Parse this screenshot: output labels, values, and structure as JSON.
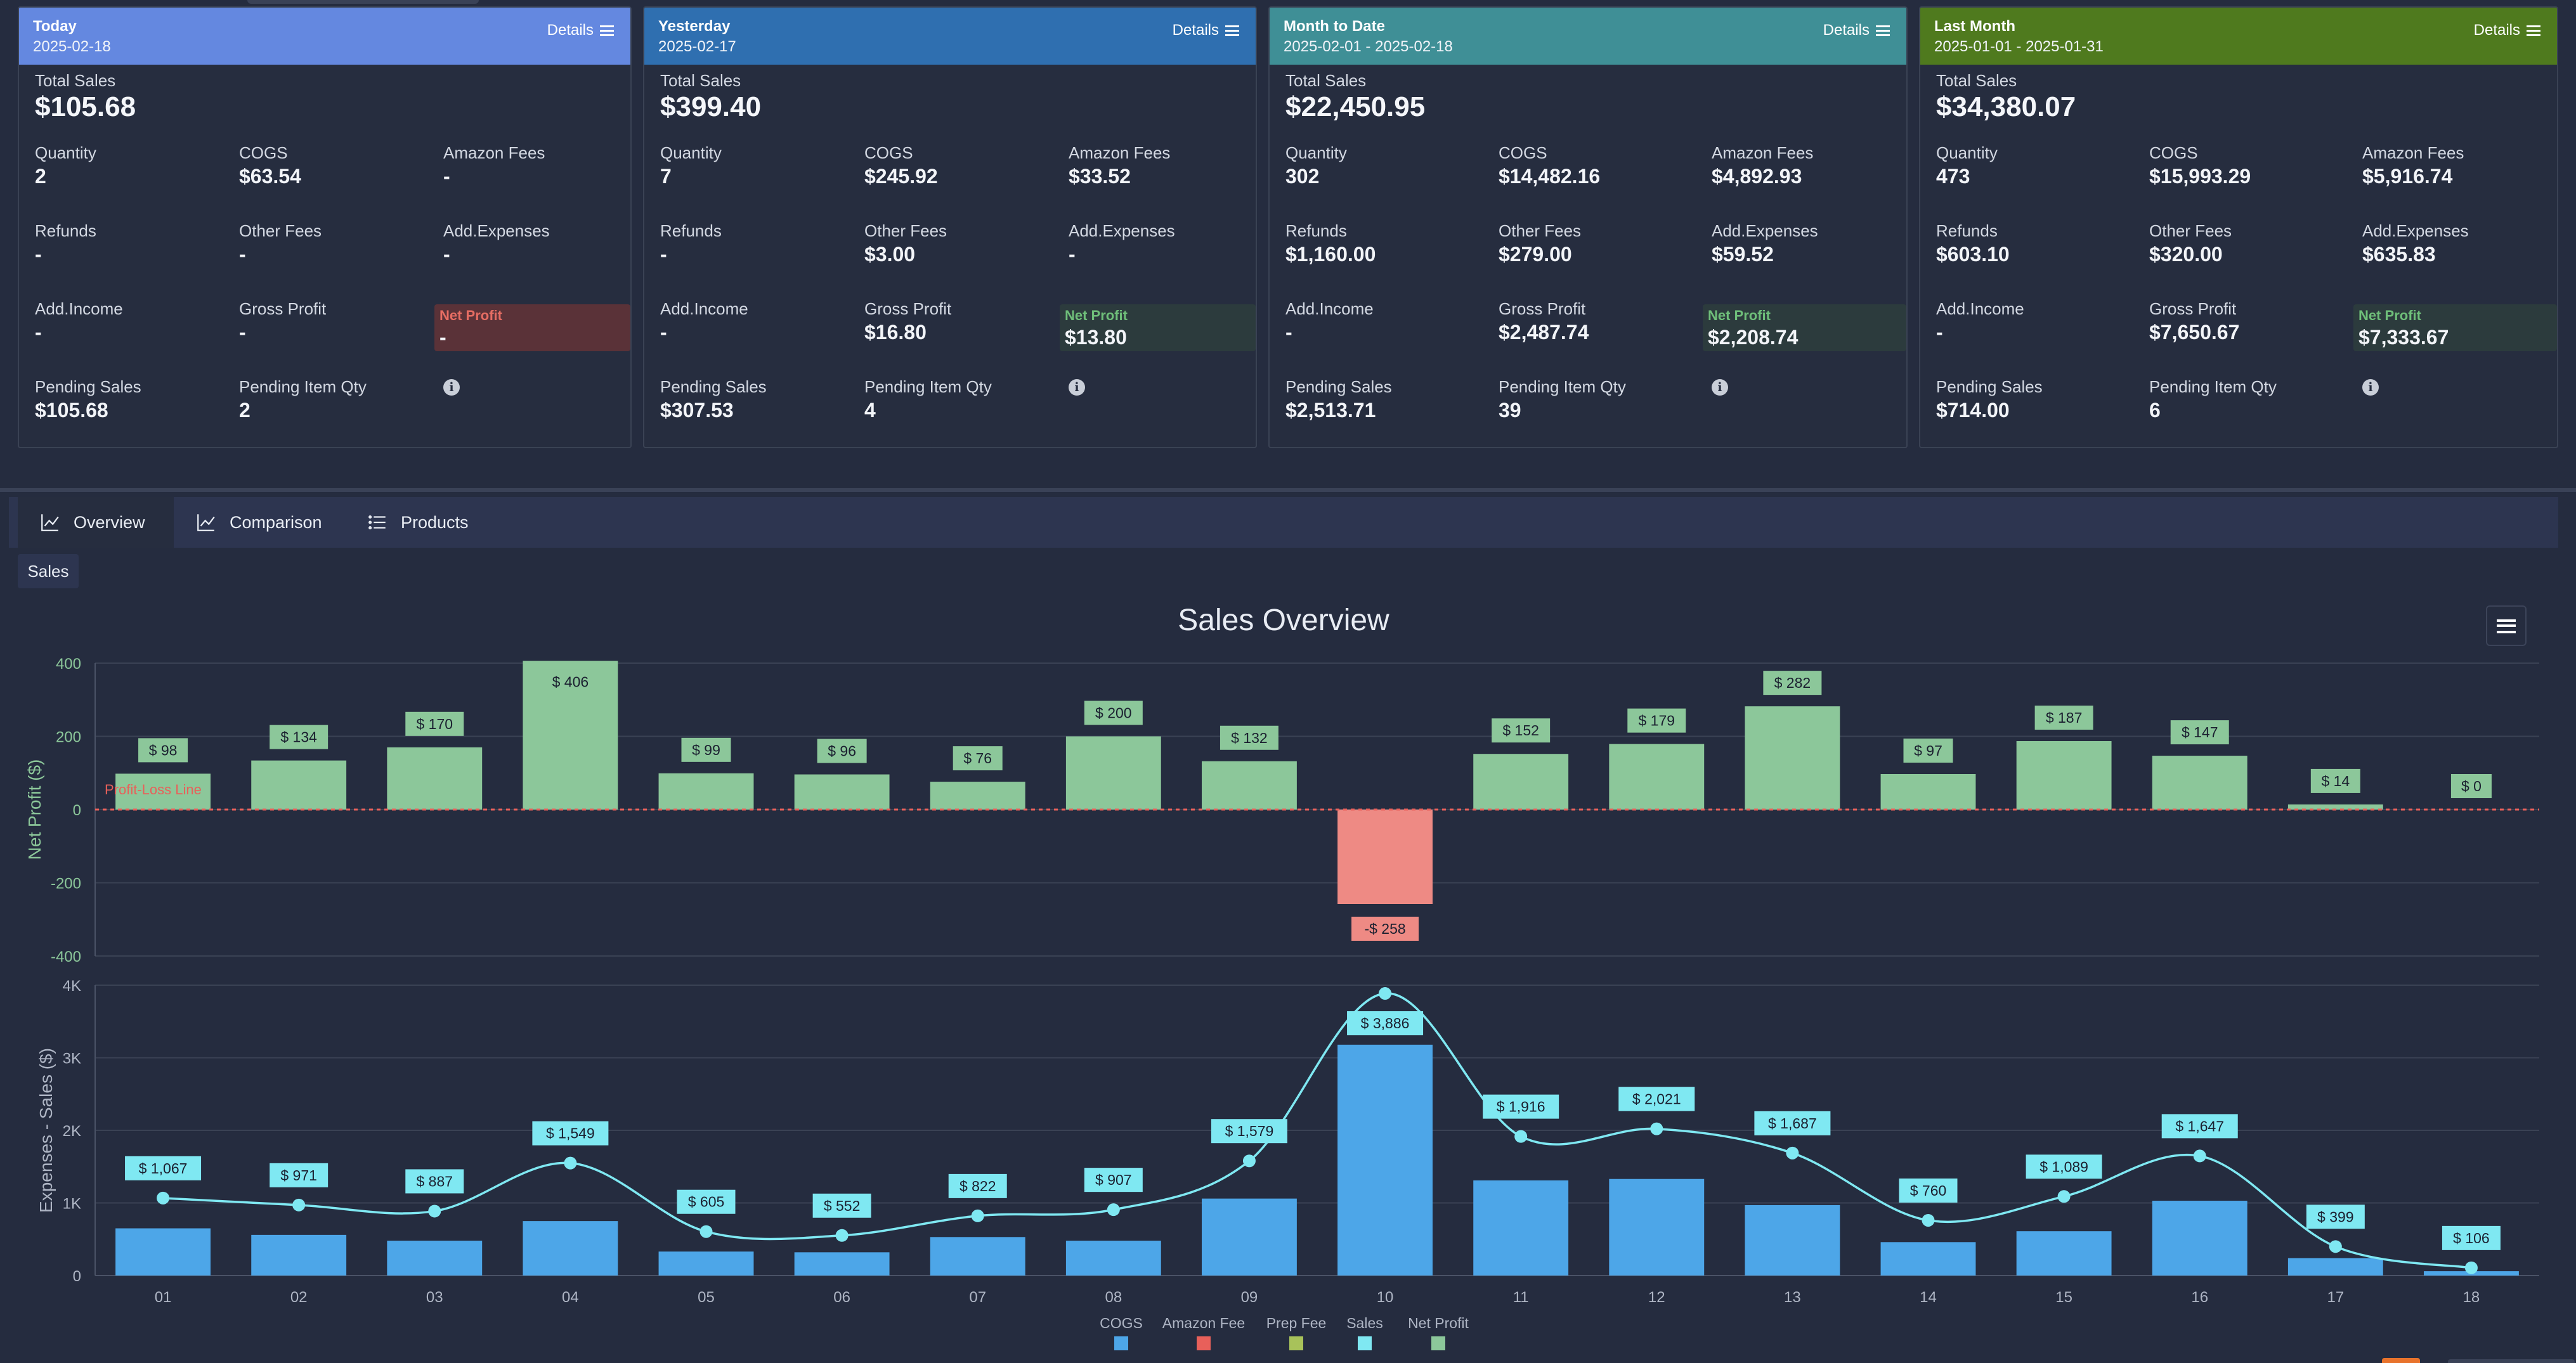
{
  "cards": [
    {
      "id": "today",
      "title": "Today",
      "range": "2025-02-18",
      "details_label": "Details",
      "color": "#6488e0",
      "np_bg": "#5a3238",
      "np_color": "#e66d63",
      "total_label": "Total Sales",
      "total_value": "$105.68",
      "metrics": [
        {
          "label": "Quantity",
          "value": "2"
        },
        {
          "label": "COGS",
          "value": "$63.54"
        },
        {
          "label": "Amazon Fees",
          "value": "-"
        },
        {
          "label": "Refunds",
          "value": "-"
        },
        {
          "label": "Other Fees",
          "value": "-"
        },
        {
          "label": "Add.Expenses",
          "value": "-"
        },
        {
          "label": "Add.Income",
          "value": "-"
        },
        {
          "label": "Gross Profit",
          "value": "-"
        },
        {
          "label": "Net Profit",
          "value": "-"
        },
        {
          "label": "Pending Sales",
          "value": "$105.68"
        },
        {
          "label": "Pending Item Qty",
          "value": "2"
        }
      ]
    },
    {
      "id": "yesterday",
      "title": "Yesterday",
      "range": "2025-02-17",
      "details_label": "Details",
      "color": "#2f6fb0",
      "np_bg": "#2c3b3d",
      "np_color": "#6fbf7a",
      "total_label": "Total Sales",
      "total_value": "$399.40",
      "metrics": [
        {
          "label": "Quantity",
          "value": "7"
        },
        {
          "label": "COGS",
          "value": "$245.92"
        },
        {
          "label": "Amazon Fees",
          "value": "$33.52"
        },
        {
          "label": "Refunds",
          "value": "-"
        },
        {
          "label": "Other Fees",
          "value": "$3.00"
        },
        {
          "label": "Add.Expenses",
          "value": "-"
        },
        {
          "label": "Add.Income",
          "value": "-"
        },
        {
          "label": "Gross Profit",
          "value": "$16.80"
        },
        {
          "label": "Net Profit",
          "value": "$13.80"
        },
        {
          "label": "Pending Sales",
          "value": "$307.53"
        },
        {
          "label": "Pending Item Qty",
          "value": "4"
        }
      ]
    },
    {
      "id": "mtd",
      "title": "Month to Date",
      "range": "2025-02-01 - 2025-02-18",
      "details_label": "Details",
      "color": "#3f8f96",
      "np_bg": "#2c3b3d",
      "np_color": "#6fbf7a",
      "total_label": "Total Sales",
      "total_value": "$22,450.95",
      "metrics": [
        {
          "label": "Quantity",
          "value": "302"
        },
        {
          "label": "COGS",
          "value": "$14,482.16"
        },
        {
          "label": "Amazon Fees",
          "value": "$4,892.93"
        },
        {
          "label": "Refunds",
          "value": "$1,160.00"
        },
        {
          "label": "Other Fees",
          "value": "$279.00"
        },
        {
          "label": "Add.Expenses",
          "value": "$59.52"
        },
        {
          "label": "Add.Income",
          "value": "-"
        },
        {
          "label": "Gross Profit",
          "value": "$2,487.74"
        },
        {
          "label": "Net Profit",
          "value": "$2,208.74"
        },
        {
          "label": "Pending Sales",
          "value": "$2,513.71"
        },
        {
          "label": "Pending Item Qty",
          "value": "39"
        }
      ]
    },
    {
      "id": "lastmonth",
      "title": "Last Month",
      "range": "2025-01-01 - 2025-01-31",
      "details_label": "Details",
      "color": "#4f7a1e",
      "np_bg": "#2c3b3d",
      "np_color": "#6fbf7a",
      "total_label": "Total Sales",
      "total_value": "$34,380.07",
      "metrics": [
        {
          "label": "Quantity",
          "value": "473"
        },
        {
          "label": "COGS",
          "value": "$15,993.29"
        },
        {
          "label": "Amazon Fees",
          "value": "$5,916.74"
        },
        {
          "label": "Refunds",
          "value": "$603.10"
        },
        {
          "label": "Other Fees",
          "value": "$320.00"
        },
        {
          "label": "Add.Expenses",
          "value": "$635.83"
        },
        {
          "label": "Add.Income",
          "value": "-"
        },
        {
          "label": "Gross Profit",
          "value": "$7,650.67"
        },
        {
          "label": "Net Profit",
          "value": "$7,333.67"
        },
        {
          "label": "Pending Sales",
          "value": "$714.00"
        },
        {
          "label": "Pending Item Qty",
          "value": "6"
        }
      ]
    }
  ],
  "info_glyph": "i",
  "tabs": [
    {
      "label": "Overview",
      "icon": "line-chart-icon",
      "active": true
    },
    {
      "label": "Comparison",
      "icon": "line-chart-icon",
      "active": false
    },
    {
      "label": "Products",
      "icon": "list-icon",
      "active": false
    }
  ],
  "subtab_label": "Sales",
  "chart_data": {
    "type": "bar",
    "title": "Sales Overview",
    "categories": [
      "01",
      "02",
      "03",
      "04",
      "05",
      "06",
      "07",
      "08",
      "09",
      "10",
      "11",
      "12",
      "13",
      "14",
      "15",
      "16",
      "17",
      "18"
    ],
    "top_panel": {
      "ylabel": "Net Profit ($)",
      "ylim": [
        -400,
        400
      ],
      "yticks": [
        400,
        200,
        0,
        -200,
        -400
      ],
      "ytick_labels": [
        "400",
        "200",
        "0",
        "-200",
        "-400"
      ],
      "reference_line": {
        "value": 0,
        "label": "Profit-Loss Line",
        "color": "#e8605a"
      },
      "series": [
        {
          "name": "Net Profit",
          "values": [
            98,
            134,
            170,
            406,
            99,
            96,
            76,
            200,
            132,
            -258,
            152,
            179,
            282,
            97,
            187,
            147,
            14,
            0
          ],
          "labels": [
            "$ 98",
            "$ 134",
            "$ 170",
            "$ 406",
            "$ 99",
            "$ 96",
            "$ 76",
            "$ 200",
            "$ 132",
            "-$ 258",
            "$ 152",
            "$ 179",
            "$ 282",
            "$ 97",
            "$ 187",
            "$ 147",
            "$ 14",
            "$ 0"
          ]
        }
      ]
    },
    "bottom_panel": {
      "ylabel": "Expenses - Sales ($)",
      "ylim": [
        0,
        4000
      ],
      "yticks": [
        0,
        1000,
        2000,
        3000,
        4000
      ],
      "ytick_labels": [
        "0",
        "1K",
        "2K",
        "3K",
        "4K"
      ],
      "series": [
        {
          "name": "COGS",
          "type": "bar",
          "values": [
            650,
            560,
            480,
            750,
            330,
            320,
            530,
            480,
            1060,
            3180,
            1310,
            1330,
            970,
            460,
            610,
            1030,
            240,
            60
          ]
        },
        {
          "name": "Sales",
          "type": "spline",
          "values": [
            1067,
            971,
            887,
            1549,
            605,
            552,
            822,
            907,
            1579,
            3886,
            1916,
            2021,
            1687,
            760,
            1089,
            1647,
            399,
            106
          ],
          "labels": [
            "$ 1,067",
            "$ 971",
            "$ 887",
            "$ 1,549",
            "$ 605",
            "$ 552",
            "$ 822",
            "$ 907",
            "$ 1,579",
            "$ 3,886",
            "$ 1,916",
            "$ 2,021",
            "$ 1,687",
            "$ 760",
            "$ 1,089",
            "$ 1,647",
            "$ 399",
            "$ 106"
          ]
        }
      ]
    },
    "legend": [
      {
        "name": "COGS",
        "color": "#4da6e8"
      },
      {
        "name": "Amazon Fee",
        "color": "#e8605a"
      },
      {
        "name": "Prep Fee",
        "color": "#a8c25a"
      },
      {
        "name": "Sales",
        "color": "#7fe8f2"
      },
      {
        "name": "Net Profit",
        "color": "#8cc79a"
      }
    ],
    "colors": {
      "profit": "#8cc79a",
      "loss": "#ee8a84",
      "cogs": "#4da6e8",
      "sales": "#7fe8f2"
    }
  }
}
